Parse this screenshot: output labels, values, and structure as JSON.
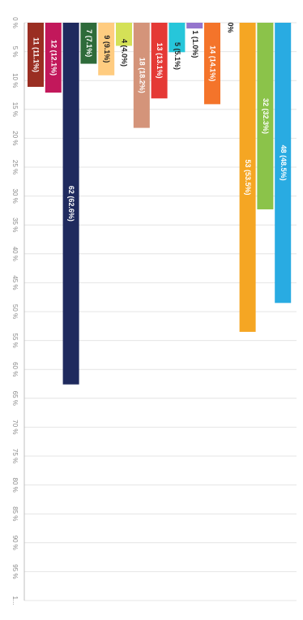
{
  "chart_data": {
    "type": "bar",
    "orientation": "vertical-rotated",
    "title": "",
    "xlabel": "",
    "ylabel": "",
    "ylim": [
      0,
      100
    ],
    "grid": true,
    "legend": "none",
    "tick_step": 5,
    "tick_labels": [
      "0 %",
      "5 %",
      "10 %",
      "15 %",
      "20 %",
      "25 %",
      "30 %",
      "35 %",
      "40 %",
      "45 %",
      "50 %",
      "55 %",
      "60 %",
      "65 %",
      "70 %",
      "75 %",
      "80 %",
      "85 %",
      "90 %",
      "95 %",
      "1..."
    ],
    "series": [
      {
        "values": [
          11.1,
          12.1,
          62.6,
          7.1,
          9.1,
          4.0,
          18.2,
          13.1,
          5.1,
          1.0,
          14.1,
          0,
          53.5,
          32.3,
          48.5
        ],
        "labels": [
          "11 (11.1%)",
          "12 (12.1%)",
          "62 (62.6%)",
          "7 (7.1%)",
          "9 (9.1%)",
          "4 (4.0%)",
          "18 (18.2%)",
          "13 (13.1%)",
          "5 (5.1%)",
          "1 (1.0%)",
          "14 (14.1%)",
          "0%",
          "53 (53.5%)",
          "32 (32.3%)",
          "48 (48.5%)"
        ],
        "colors": [
          "#9a2e22",
          "#c2185b",
          "#1f2a5e",
          "#2e6b3a",
          "#ffcc80",
          "#d4e157",
          "#d4947a",
          "#e53935",
          "#26c6da",
          "#9575cd",
          "#f4742a",
          "#ffffff",
          "#f5a623",
          "#8bc34a",
          "#29abe2"
        ]
      }
    ]
  }
}
